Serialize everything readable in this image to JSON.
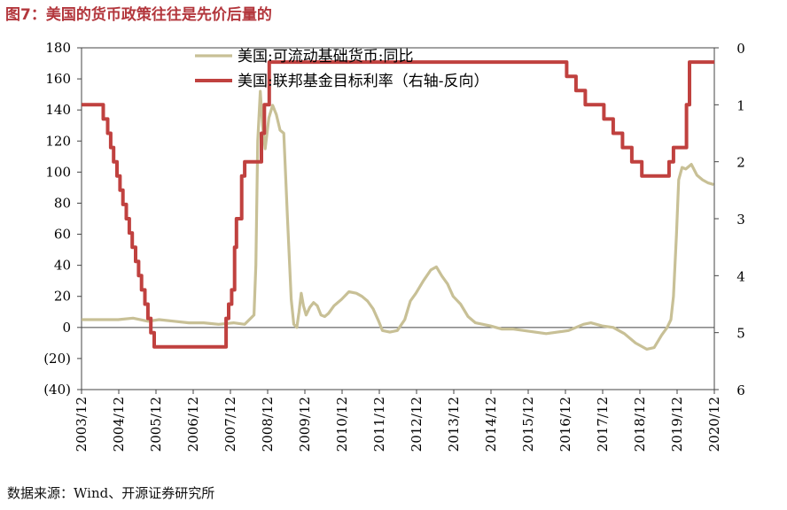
{
  "figure_title": "图7：美国的货币政策往往是先价后量的",
  "source_note": "数据来源：Wind、开源证券研究所",
  "colors": {
    "title": "#b3373d",
    "money": "#c8c096",
    "rate": "#c0413f"
  },
  "chart_data": {
    "type": "line",
    "xlabel": "",
    "ylabel": "",
    "x_ticks": [
      "2003/12",
      "2004/12",
      "2005/12",
      "2006/12",
      "2007/12",
      "2008/12",
      "2009/12",
      "2010/12",
      "2011/12",
      "2012/12",
      "2013/12",
      "2014/12",
      "2015/12",
      "2016/12",
      "2017/12",
      "2018/12",
      "2019/12",
      "2020/12"
    ],
    "x_range": [
      2003.917,
      2020.917
    ],
    "y_left": {
      "ticks": [
        "180",
        "160",
        "140",
        "120",
        "100",
        "80",
        "60",
        "40",
        "20",
        "0",
        "(20)",
        "(40)"
      ],
      "ylim": [
        -40,
        180
      ]
    },
    "y_right": {
      "ticks": [
        "0",
        "1",
        "2",
        "3",
        "4",
        "5",
        "6"
      ],
      "ylim": [
        0,
        6
      ],
      "inverted": true
    },
    "legend": "top-center",
    "grid": false,
    "series": [
      {
        "name": "美国:可流动基础货币:同比",
        "axis": "left",
        "x": [
          2003.92,
          2004.3,
          2004.6,
          2004.9,
          2005.3,
          2005.7,
          2006.0,
          2006.4,
          2006.8,
          2007.2,
          2007.6,
          2008.0,
          2008.3,
          2008.55,
          2008.6,
          2008.65,
          2008.72,
          2008.78,
          2008.85,
          2008.95,
          2009.05,
          2009.15,
          2009.25,
          2009.35,
          2009.45,
          2009.55,
          2009.62,
          2009.7,
          2009.76,
          2009.82,
          2009.88,
          2009.95,
          2010.05,
          2010.15,
          2010.25,
          2010.35,
          2010.45,
          2010.55,
          2010.7,
          2010.9,
          2011.1,
          2011.3,
          2011.45,
          2011.6,
          2011.75,
          2011.9,
          2012.0,
          2012.2,
          2012.4,
          2012.6,
          2012.75,
          2012.9,
          2013.1,
          2013.3,
          2013.45,
          2013.6,
          2013.75,
          2013.9,
          2014.1,
          2014.3,
          2014.5,
          2014.7,
          2014.9,
          2015.2,
          2015.5,
          2015.8,
          2016.1,
          2016.4,
          2016.7,
          2017.0,
          2017.2,
          2017.4,
          2017.6,
          2017.9,
          2018.2,
          2018.5,
          2018.8,
          2018.95,
          2019.1,
          2019.3,
          2019.5,
          2019.65,
          2019.75,
          2019.82,
          2019.9,
          2019.96,
          2020.05,
          2020.15,
          2020.3,
          2020.45,
          2020.6,
          2020.75,
          2020.9
        ],
        "values": [
          5,
          5,
          5,
          5,
          6,
          4,
          5,
          4,
          3,
          3,
          2,
          3,
          2,
          8,
          40,
          120,
          152,
          130,
          115,
          135,
          143,
          137,
          127,
          125,
          70,
          18,
          2,
          0,
          10,
          22,
          14,
          8,
          13,
          16,
          14,
          8,
          7,
          9,
          14,
          18,
          23,
          22,
          20,
          17,
          12,
          4,
          -2,
          -3,
          -2,
          5,
          17,
          22,
          30,
          37,
          39,
          33,
          28,
          20,
          15,
          7,
          3,
          2,
          1,
          -1,
          -1,
          -2,
          -3,
          -4,
          -3,
          -2,
          0,
          2,
          3,
          1,
          0,
          -4,
          -10,
          -12,
          -14,
          -13,
          -5,
          0,
          5,
          20,
          60,
          95,
          103,
          102,
          105,
          98,
          95,
          93,
          92
        ]
      },
      {
        "name": "美国:联邦基金目标利率（右轴-反向）",
        "axis": "right",
        "x": [
          2003.92,
          2004.45,
          2004.5,
          2004.62,
          2004.7,
          2004.78,
          2004.87,
          2004.95,
          2005.03,
          2005.12,
          2005.2,
          2005.28,
          2005.37,
          2005.45,
          2005.53,
          2005.62,
          2005.7,
          2005.78,
          2005.87,
          2005.95,
          2006.03,
          2006.12,
          2006.2,
          2006.28,
          2006.37,
          2006.45,
          2007.7,
          2007.8,
          2007.87,
          2007.95,
          2008.03,
          2008.08,
          2008.22,
          2008.3,
          2008.75,
          2008.83,
          2008.96,
          2015.95,
          2016.95,
          2017.2,
          2017.45,
          2017.95,
          2018.2,
          2018.45,
          2018.7,
          2018.97,
          2019.6,
          2019.7,
          2019.82,
          2020.17,
          2020.25,
          2020.92
        ],
        "values": [
          1.0,
          1.0,
          1.25,
          1.5,
          1.75,
          2.0,
          2.25,
          2.5,
          2.75,
          3.0,
          3.25,
          3.5,
          3.75,
          4.0,
          4.25,
          4.5,
          4.75,
          5.0,
          5.25,
          5.25,
          5.25,
          5.25,
          5.25,
          5.25,
          5.25,
          5.25,
          5.25,
          4.75,
          4.5,
          4.25,
          3.5,
          3.0,
          2.25,
          2.0,
          1.5,
          1.0,
          0.25,
          0.25,
          0.5,
          0.75,
          1.0,
          1.25,
          1.5,
          1.75,
          2.0,
          2.25,
          2.25,
          2.0,
          1.75,
          1.0,
          0.25,
          0.25
        ]
      }
    ]
  }
}
